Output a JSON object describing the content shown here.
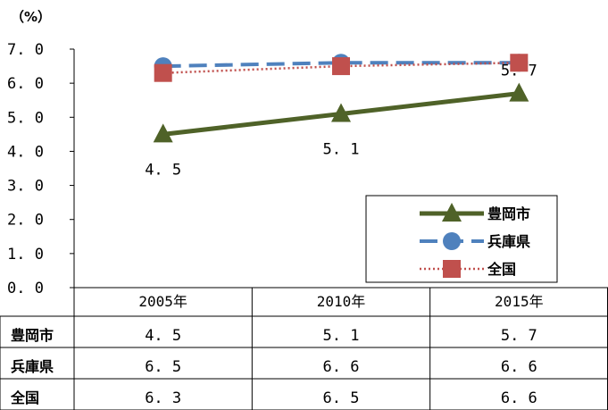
{
  "chart_data": {
    "type": "line",
    "unit_label": "（%）",
    "categories": [
      "2005年",
      "2010年",
      "2015年"
    ],
    "ylim": [
      0,
      7
    ],
    "yticks": [
      "0. 0",
      "1. 0",
      "2. 0",
      "3. 0",
      "4. 0",
      "5. 0",
      "6. 0",
      "7. 0"
    ],
    "grid": false,
    "legend_position": "bottom-right",
    "series": [
      {
        "name": "豊岡市",
        "values": [
          4.5,
          5.1,
          5.7
        ],
        "display": [
          "4. 5",
          "5. 1",
          "5. 7"
        ],
        "color": "#4f6228",
        "marker": "triangle",
        "line": "solid"
      },
      {
        "name": "兵庫県",
        "values": [
          6.5,
          6.6,
          6.6
        ],
        "display": [
          "6. 5",
          "6. 6",
          "6. 6"
        ],
        "color": "#4f81bd",
        "marker": "circle",
        "line": "dashed"
      },
      {
        "name": "全国",
        "values": [
          6.3,
          6.5,
          6.6
        ],
        "display": [
          "6. 3",
          "6. 5",
          "6. 6"
        ],
        "color": "#c0504d",
        "marker": "square",
        "line": "dotted"
      }
    ]
  }
}
